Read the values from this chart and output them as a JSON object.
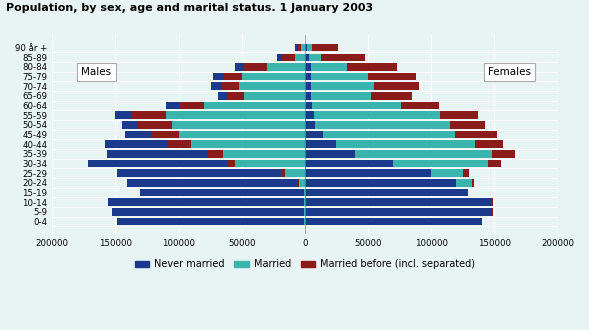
{
  "title": "Population, by sex, age and marital status. 1 January 2003",
  "age_groups": [
    "0-4",
    "5-9",
    "10-14",
    "15-19",
    "20-24",
    "25-29",
    "30-34",
    "35-39",
    "40-44",
    "45-49",
    "50-54",
    "55-59",
    "60-64",
    "65-69",
    "70-74",
    "75-79",
    "80-84",
    "85-89",
    "90 år +"
  ],
  "males": {
    "never_married": [
      148000,
      152000,
      155000,
      130000,
      135000,
      130000,
      110000,
      80000,
      50000,
      20000,
      13000,
      12000,
      10000,
      8000,
      8000,
      9000,
      7000,
      4000,
      2000
    ],
    "married": [
      500,
      500,
      500,
      500,
      5000,
      16000,
      55000,
      65000,
      90000,
      100000,
      105000,
      110000,
      80000,
      48000,
      52000,
      50000,
      30000,
      8000,
      3000
    ],
    "married_before": [
      100,
      100,
      100,
      200,
      800,
      3000,
      7000,
      12000,
      18000,
      22000,
      27000,
      28000,
      20000,
      13000,
      14000,
      14000,
      18000,
      10000,
      3000
    ]
  },
  "females": {
    "never_married": [
      140000,
      148000,
      148000,
      128000,
      120000,
      100000,
      70000,
      40000,
      25000,
      14000,
      8000,
      7000,
      6000,
      5000,
      5000,
      5000,
      5000,
      3000,
      2000
    ],
    "married": [
      500,
      500,
      500,
      500,
      12000,
      25000,
      75000,
      108000,
      110000,
      105000,
      107000,
      100000,
      70000,
      47000,
      50000,
      45000,
      28000,
      10000,
      4000
    ],
    "married_before": [
      100,
      100,
      100,
      300,
      2000,
      5000,
      10000,
      18000,
      22000,
      33000,
      28000,
      30000,
      30000,
      33000,
      35000,
      38000,
      40000,
      35000,
      20000
    ]
  },
  "colors": {
    "never_married": "#1b3a8c",
    "married": "#3ab5ae",
    "married_before": "#8b1a1a"
  },
  "xlim": 200000,
  "background_color": "#e8f4f4",
  "legend_labels": [
    "Never married",
    "Married",
    "Married before (incl. separated)"
  ]
}
